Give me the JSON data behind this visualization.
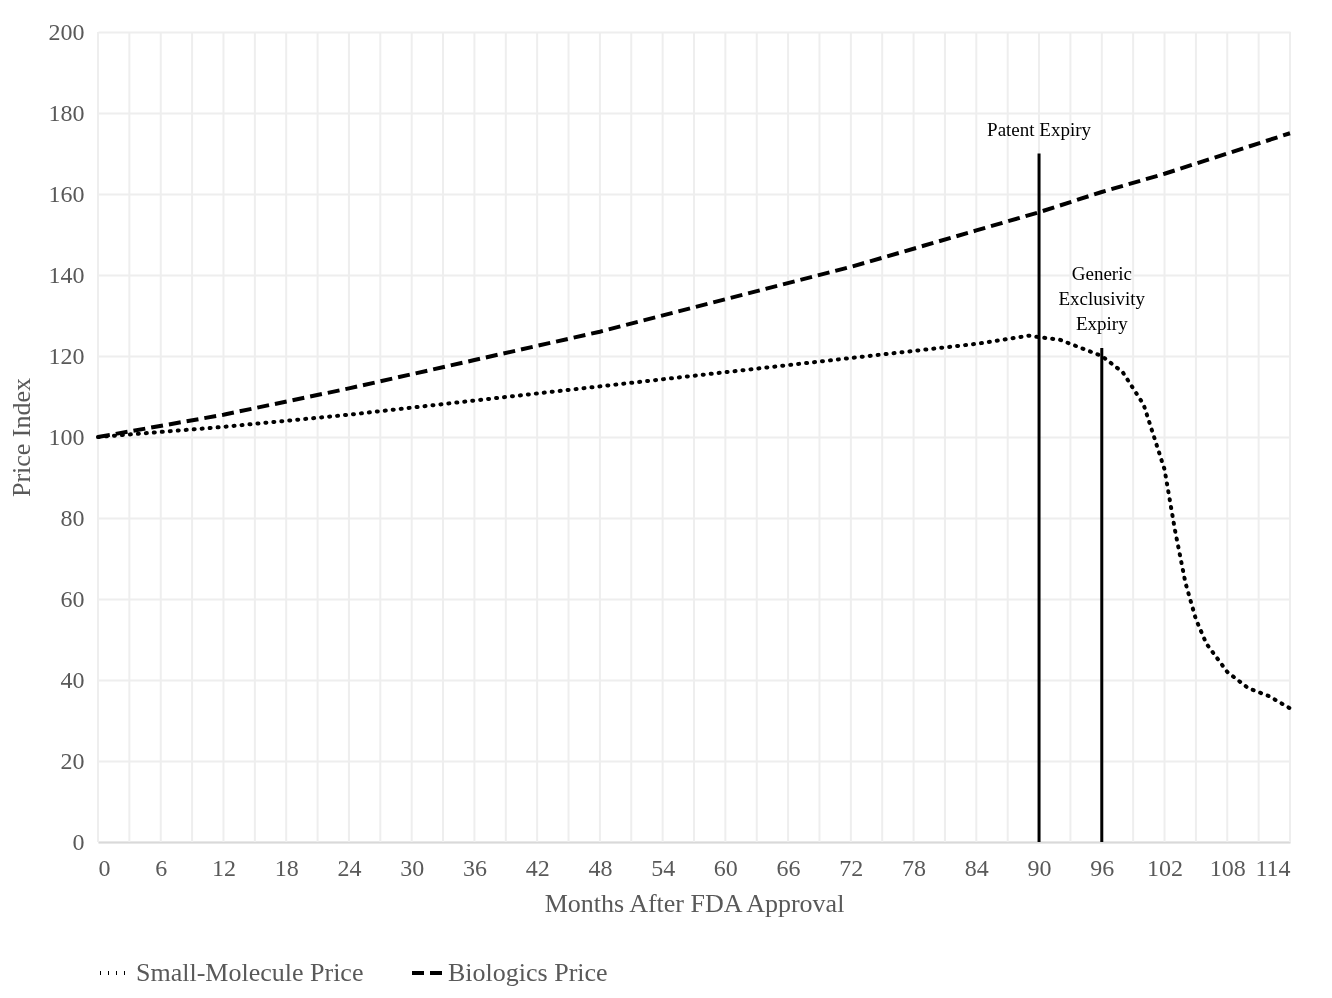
{
  "chart_data": {
    "type": "line",
    "xlabel": "Months After FDA Approval",
    "ylabel": "Price Index",
    "xlim": [
      0,
      114
    ],
    "xticks": [
      0,
      {
        "value": 3,
        "label": null
      },
      6,
      {
        "value": 9,
        "label": null
      },
      12,
      {
        "value": 15,
        "label": null
      },
      18,
      {
        "value": 21,
        "label": null
      },
      24,
      {
        "value": 27,
        "label": null
      },
      30,
      {
        "value": 33,
        "label": null
      },
      36,
      {
        "value": 39,
        "label": null
      },
      42,
      {
        "value": 45,
        "label": null
      },
      48,
      {
        "value": 51,
        "label": null
      },
      54,
      {
        "value": 57,
        "label": null
      },
      60,
      {
        "value": 63,
        "label": null
      },
      66,
      {
        "value": 69,
        "label": null
      },
      72,
      {
        "value": 75,
        "label": null
      },
      78,
      {
        "value": 81,
        "label": null
      },
      84,
      {
        "value": 87,
        "label": null
      },
      90,
      {
        "value": 93,
        "label": null
      },
      96,
      {
        "value": 99,
        "label": null
      },
      102,
      {
        "value": 105,
        "label": null
      },
      108,
      {
        "value": 111,
        "label": null
      },
      114
    ],
    "ylim": [
      0,
      200
    ],
    "yticks": [
      0,
      20,
      40,
      60,
      80,
      100,
      120,
      140,
      160,
      180,
      200
    ],
    "grid": true,
    "legend": "bottom",
    "series": [
      {
        "name": "Small-Molecule Price",
        "color": "#000000",
        "line_style": "dotted",
        "x": [
          0,
          12,
          24,
          36,
          48,
          60,
          72,
          84,
          89,
          92,
          96,
          98,
          100,
          102,
          103,
          104,
          105,
          106,
          108,
          110,
          112,
          114
        ],
        "values": [
          100,
          102.5,
          105.5,
          109,
          112.5,
          116,
          119.5,
          123,
          125,
          124,
          120,
          116,
          108,
          92,
          77,
          64,
          55,
          49,
          42,
          38,
          36,
          33
        ]
      },
      {
        "name": "Biologics Price",
        "color": "#000000",
        "line_style": "dashed",
        "x": [
          0,
          12,
          24,
          36,
          48,
          60,
          72,
          84,
          90,
          96,
          102,
          108,
          114
        ],
        "values": [
          100,
          105.5,
          112,
          119,
          126,
          134,
          142,
          151,
          155.5,
          160.5,
          165,
          170,
          175
        ]
      },
      {
        "type": "line",
        "name": "Patent Expiry",
        "color": "#000000",
        "line_style": "solid",
        "x": [
          90,
          90
        ],
        "values": [
          0,
          170
        ]
      },
      {
        "type": "line",
        "name": "Generic\nExclusivity\nExpiry",
        "color": "#000000",
        "line_style": "solid",
        "x": [
          96,
          96
        ],
        "values": [
          0,
          122
        ]
      }
    ]
  }
}
